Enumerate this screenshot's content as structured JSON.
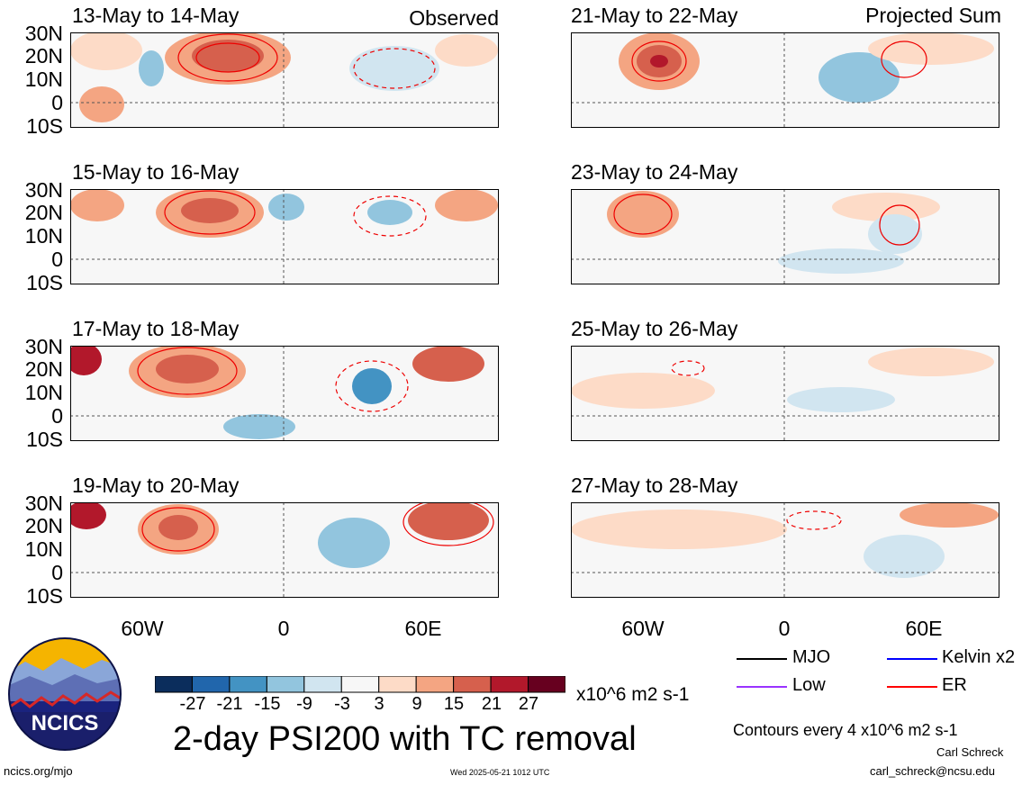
{
  "header": {
    "left_label": "Observed",
    "right_label": "Projected Sum"
  },
  "panels_left": [
    {
      "title": "13-May to 14-May"
    },
    {
      "title": "15-May to 16-May"
    },
    {
      "title": "17-May to 18-May"
    },
    {
      "title": "19-May to 20-May"
    }
  ],
  "panels_right": [
    {
      "title": "21-May to 22-May"
    },
    {
      "title": "23-May to 24-May"
    },
    {
      "title": "25-May to 26-May"
    },
    {
      "title": "27-May to 28-May"
    }
  ],
  "lat_labels": [
    "30N",
    "20N",
    "10N",
    "0",
    "10S"
  ],
  "lon_labels": [
    "60W",
    "0",
    "60E"
  ],
  "colorbar": {
    "labels": [
      "-27",
      "-21",
      "-15",
      "-9",
      "-3",
      "3",
      "9",
      "15",
      "21",
      "27"
    ],
    "colors": [
      "#0b2d5c",
      "#2166ac",
      "#4393c3",
      "#92c5de",
      "#d1e5f0",
      "#f7f7f7",
      "#fddbc7",
      "#f4a582",
      "#d6604d",
      "#b2182b",
      "#67001f"
    ],
    "unit": "x10^6 m2 s-1"
  },
  "title": "2-day PSI200 with TC removal",
  "legend": [
    {
      "label": "MJO",
      "color": "#000000"
    },
    {
      "label": "Kelvin x2",
      "color": "#0000ff"
    },
    {
      "label": "Low",
      "color": "#9933ff"
    },
    {
      "label": "ER",
      "color": "#ff0000"
    }
  ],
  "contour_note": "Contours every 4 x10^6 m2 s-1",
  "author": "Carl Schreck",
  "email": "carl_schreck@ncsu.edu",
  "url": "ncics.org/mjo",
  "timestamp": "Wed 2025-05-21 1012 UTC",
  "logo_text": "NCICS"
}
